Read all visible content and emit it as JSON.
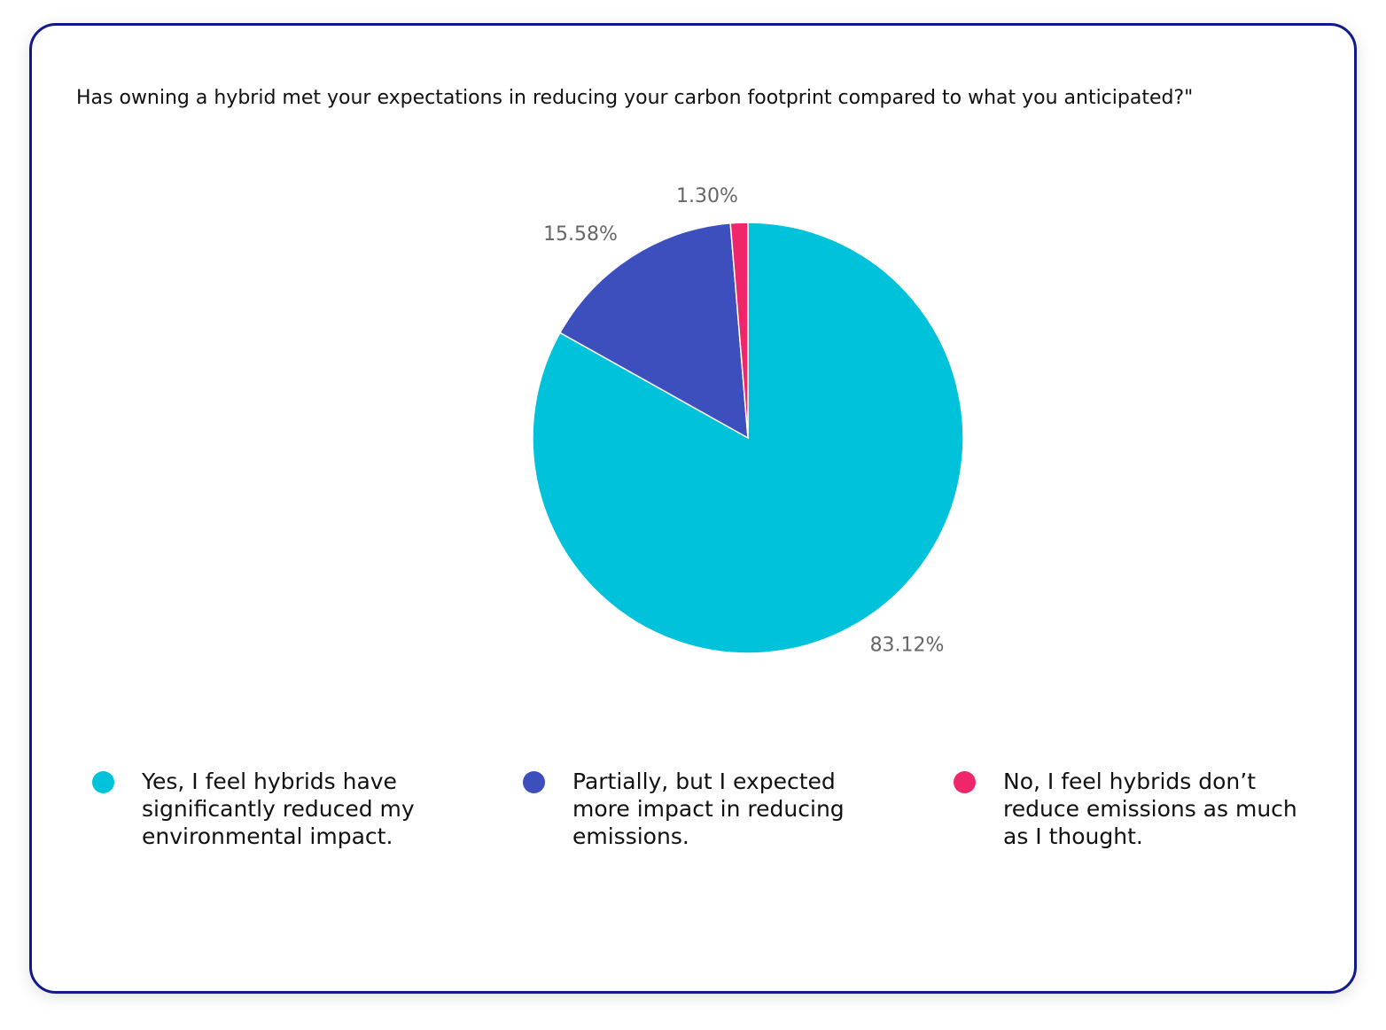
{
  "chart_data": {
    "type": "pie",
    "title": "Has owning a hybrid met your expectations in reducing your carbon footprint compared to what you anticipated?\"",
    "categories": [
      "Yes, I feel hybrids have significantly reduced my environmental impact.",
      "Partially, but I expected more impact in reducing emissions.",
      "No, I feel hybrids don’t reduce emissions as much as I thought."
    ],
    "values": [
      83.12,
      15.58,
      1.3
    ],
    "value_labels": [
      "83.12%",
      "15.58%",
      "1.30%"
    ],
    "colors": [
      "#00c2da",
      "#3c4fbc",
      "#f0266a"
    ]
  }
}
